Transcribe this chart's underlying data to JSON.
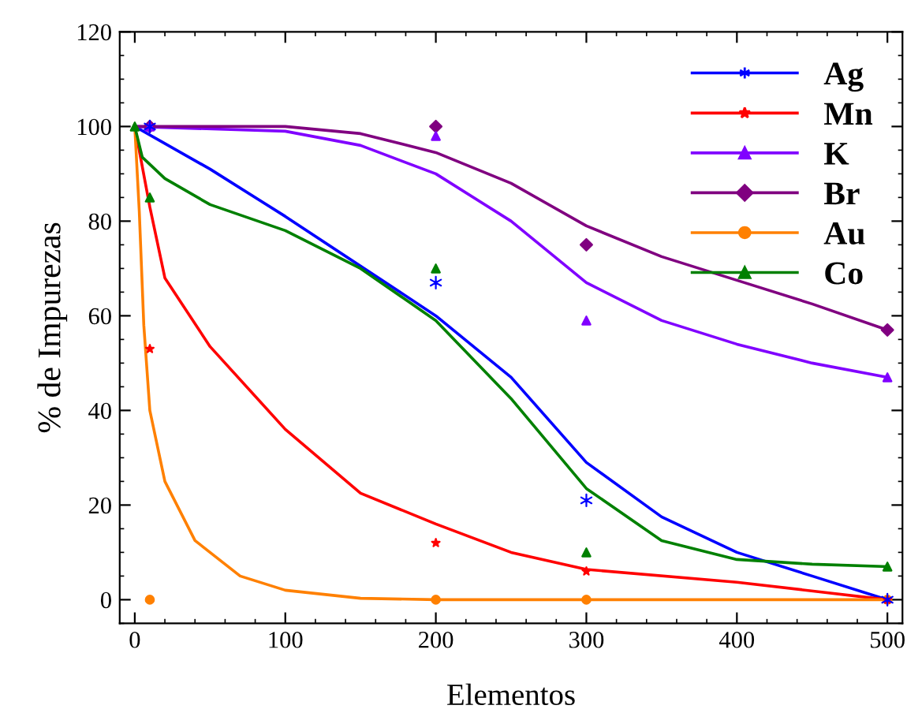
{
  "chart_data": {
    "type": "scatter",
    "xlabel": "Elementos",
    "ylabel": "% de Impurezas",
    "xlim": [
      -10,
      510
    ],
    "ylim": [
      -5,
      120
    ],
    "xticks": [
      0,
      100,
      200,
      300,
      400,
      500
    ],
    "yticks": [
      0,
      20,
      40,
      60,
      80,
      100,
      120
    ],
    "grid": false,
    "legend": "top right",
    "series": [
      {
        "name": "Ag",
        "color": "#0000ff",
        "marker": "cross",
        "x": [
          10,
          200,
          300,
          500
        ],
        "values": [
          100,
          67,
          21,
          0
        ]
      },
      {
        "name": "Mn",
        "color": "#ff0000",
        "marker": "star",
        "x": [
          10,
          200,
          300,
          500
        ],
        "values": [
          53,
          12,
          6,
          0
        ]
      },
      {
        "name": "K",
        "color": "#8000ff",
        "marker": "triangle",
        "x": [
          10,
          200,
          300,
          500
        ],
        "values": [
          100,
          98,
          59,
          47
        ]
      },
      {
        "name": "Br",
        "color": "#800080",
        "marker": "diamond",
        "x": [
          10,
          200,
          300,
          500
        ],
        "values": [
          100,
          100,
          75,
          57
        ]
      },
      {
        "name": "Au",
        "color": "#ff8000",
        "marker": "circle",
        "x": [
          10,
          200,
          300,
          500
        ],
        "values": [
          0,
          0,
          0,
          0
        ]
      },
      {
        "name": "Co",
        "color": "#008000",
        "marker": "triangle",
        "x": [
          0,
          10,
          200,
          300,
          500
        ],
        "values": [
          100,
          85,
          70,
          10,
          7
        ]
      },
      {
        "type": "line",
        "color": "#0000ff",
        "x": [
          0,
          50,
          100,
          200,
          250,
          300,
          350,
          400,
          450,
          500
        ],
        "values": [
          100,
          91,
          81,
          60,
          47,
          29,
          17.5,
          10,
          5,
          0
        ]
      },
      {
        "type": "line",
        "color": "#ff0000",
        "x": [
          0,
          10,
          20,
          50,
          100,
          150,
          200,
          250,
          300,
          400,
          500
        ],
        "values": [
          100,
          83,
          68,
          53.5,
          36,
          22.5,
          16,
          10,
          6.4,
          3.7,
          0
        ]
      },
      {
        "type": "line",
        "color": "#8000ff",
        "x": [
          0,
          100,
          150,
          200,
          250,
          300,
          350,
          400,
          450,
          500
        ],
        "values": [
          100,
          99,
          96,
          90,
          80,
          67,
          59,
          54,
          50,
          47
        ]
      },
      {
        "type": "line",
        "color": "#800080",
        "x": [
          0,
          100,
          150,
          200,
          250,
          300,
          350,
          400,
          450,
          500
        ],
        "values": [
          100,
          100,
          98.5,
          94.5,
          88,
          79,
          72.5,
          67.5,
          62.5,
          57
        ]
      },
      {
        "type": "line",
        "color": "#ff8000",
        "x": [
          0,
          3,
          6,
          10,
          20,
          40,
          70,
          100,
          150,
          200,
          500
        ],
        "values": [
          100,
          82,
          58,
          40,
          25,
          12.5,
          5,
          2,
          0.3,
          0,
          0
        ]
      },
      {
        "type": "line",
        "color": "#008000",
        "x": [
          0,
          5,
          20,
          50,
          100,
          150,
          200,
          250,
          300,
          350,
          400,
          450,
          500
        ],
        "values": [
          100,
          93.5,
          89,
          83.5,
          78,
          70,
          59,
          42.5,
          23.5,
          12.5,
          8.5,
          7.5,
          7
        ]
      }
    ]
  }
}
